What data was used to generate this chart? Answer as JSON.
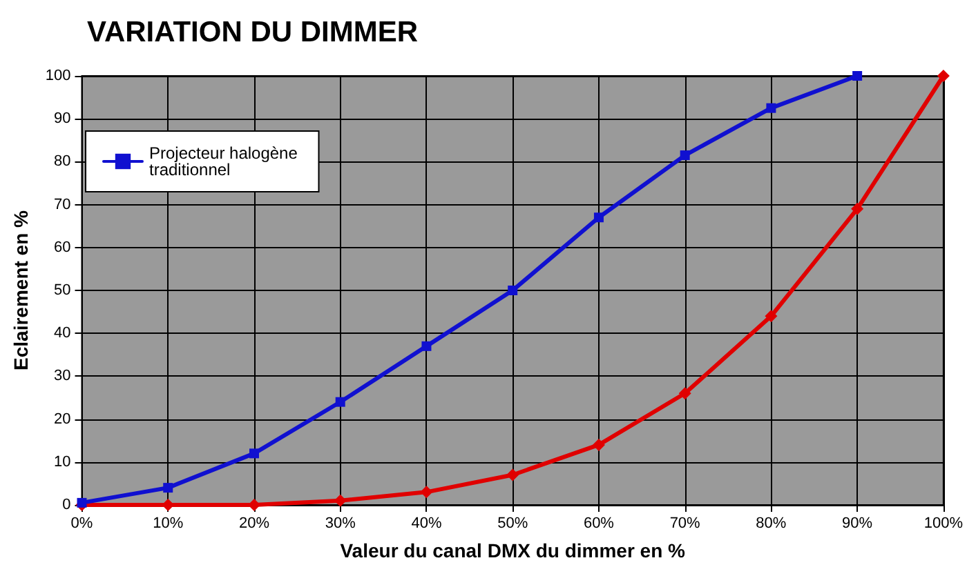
{
  "chart_data": {
    "type": "line",
    "title": "VARIATION DU DIMMER",
    "xlabel": "Valeur du canal DMX du dimmer en %",
    "ylabel": "Eclairement en %",
    "categories": [
      "0%",
      "10%",
      "20%",
      "30%",
      "40%",
      "50%",
      "60%",
      "70%",
      "80%",
      "90%",
      "100%"
    ],
    "series": [
      {
        "color": "#e00000",
        "marker": "diamond",
        "values": [
          0,
          0,
          0,
          1,
          3,
          7,
          14,
          26,
          44,
          69,
          100
        ]
      },
      {
        "name": "Projecteur halogène traditionnel",
        "color": "#1010d0",
        "marker": "square",
        "values": [
          0.5,
          4,
          12,
          24,
          37,
          50,
          67,
          81.5,
          92.5,
          100,
          null
        ]
      }
    ],
    "ylim": [
      0,
      100
    ],
    "yticks": [
      0,
      10,
      20,
      30,
      40,
      50,
      60,
      70,
      80,
      90,
      100
    ],
    "grid": true,
    "legend": "top left",
    "line_style": "solid"
  }
}
